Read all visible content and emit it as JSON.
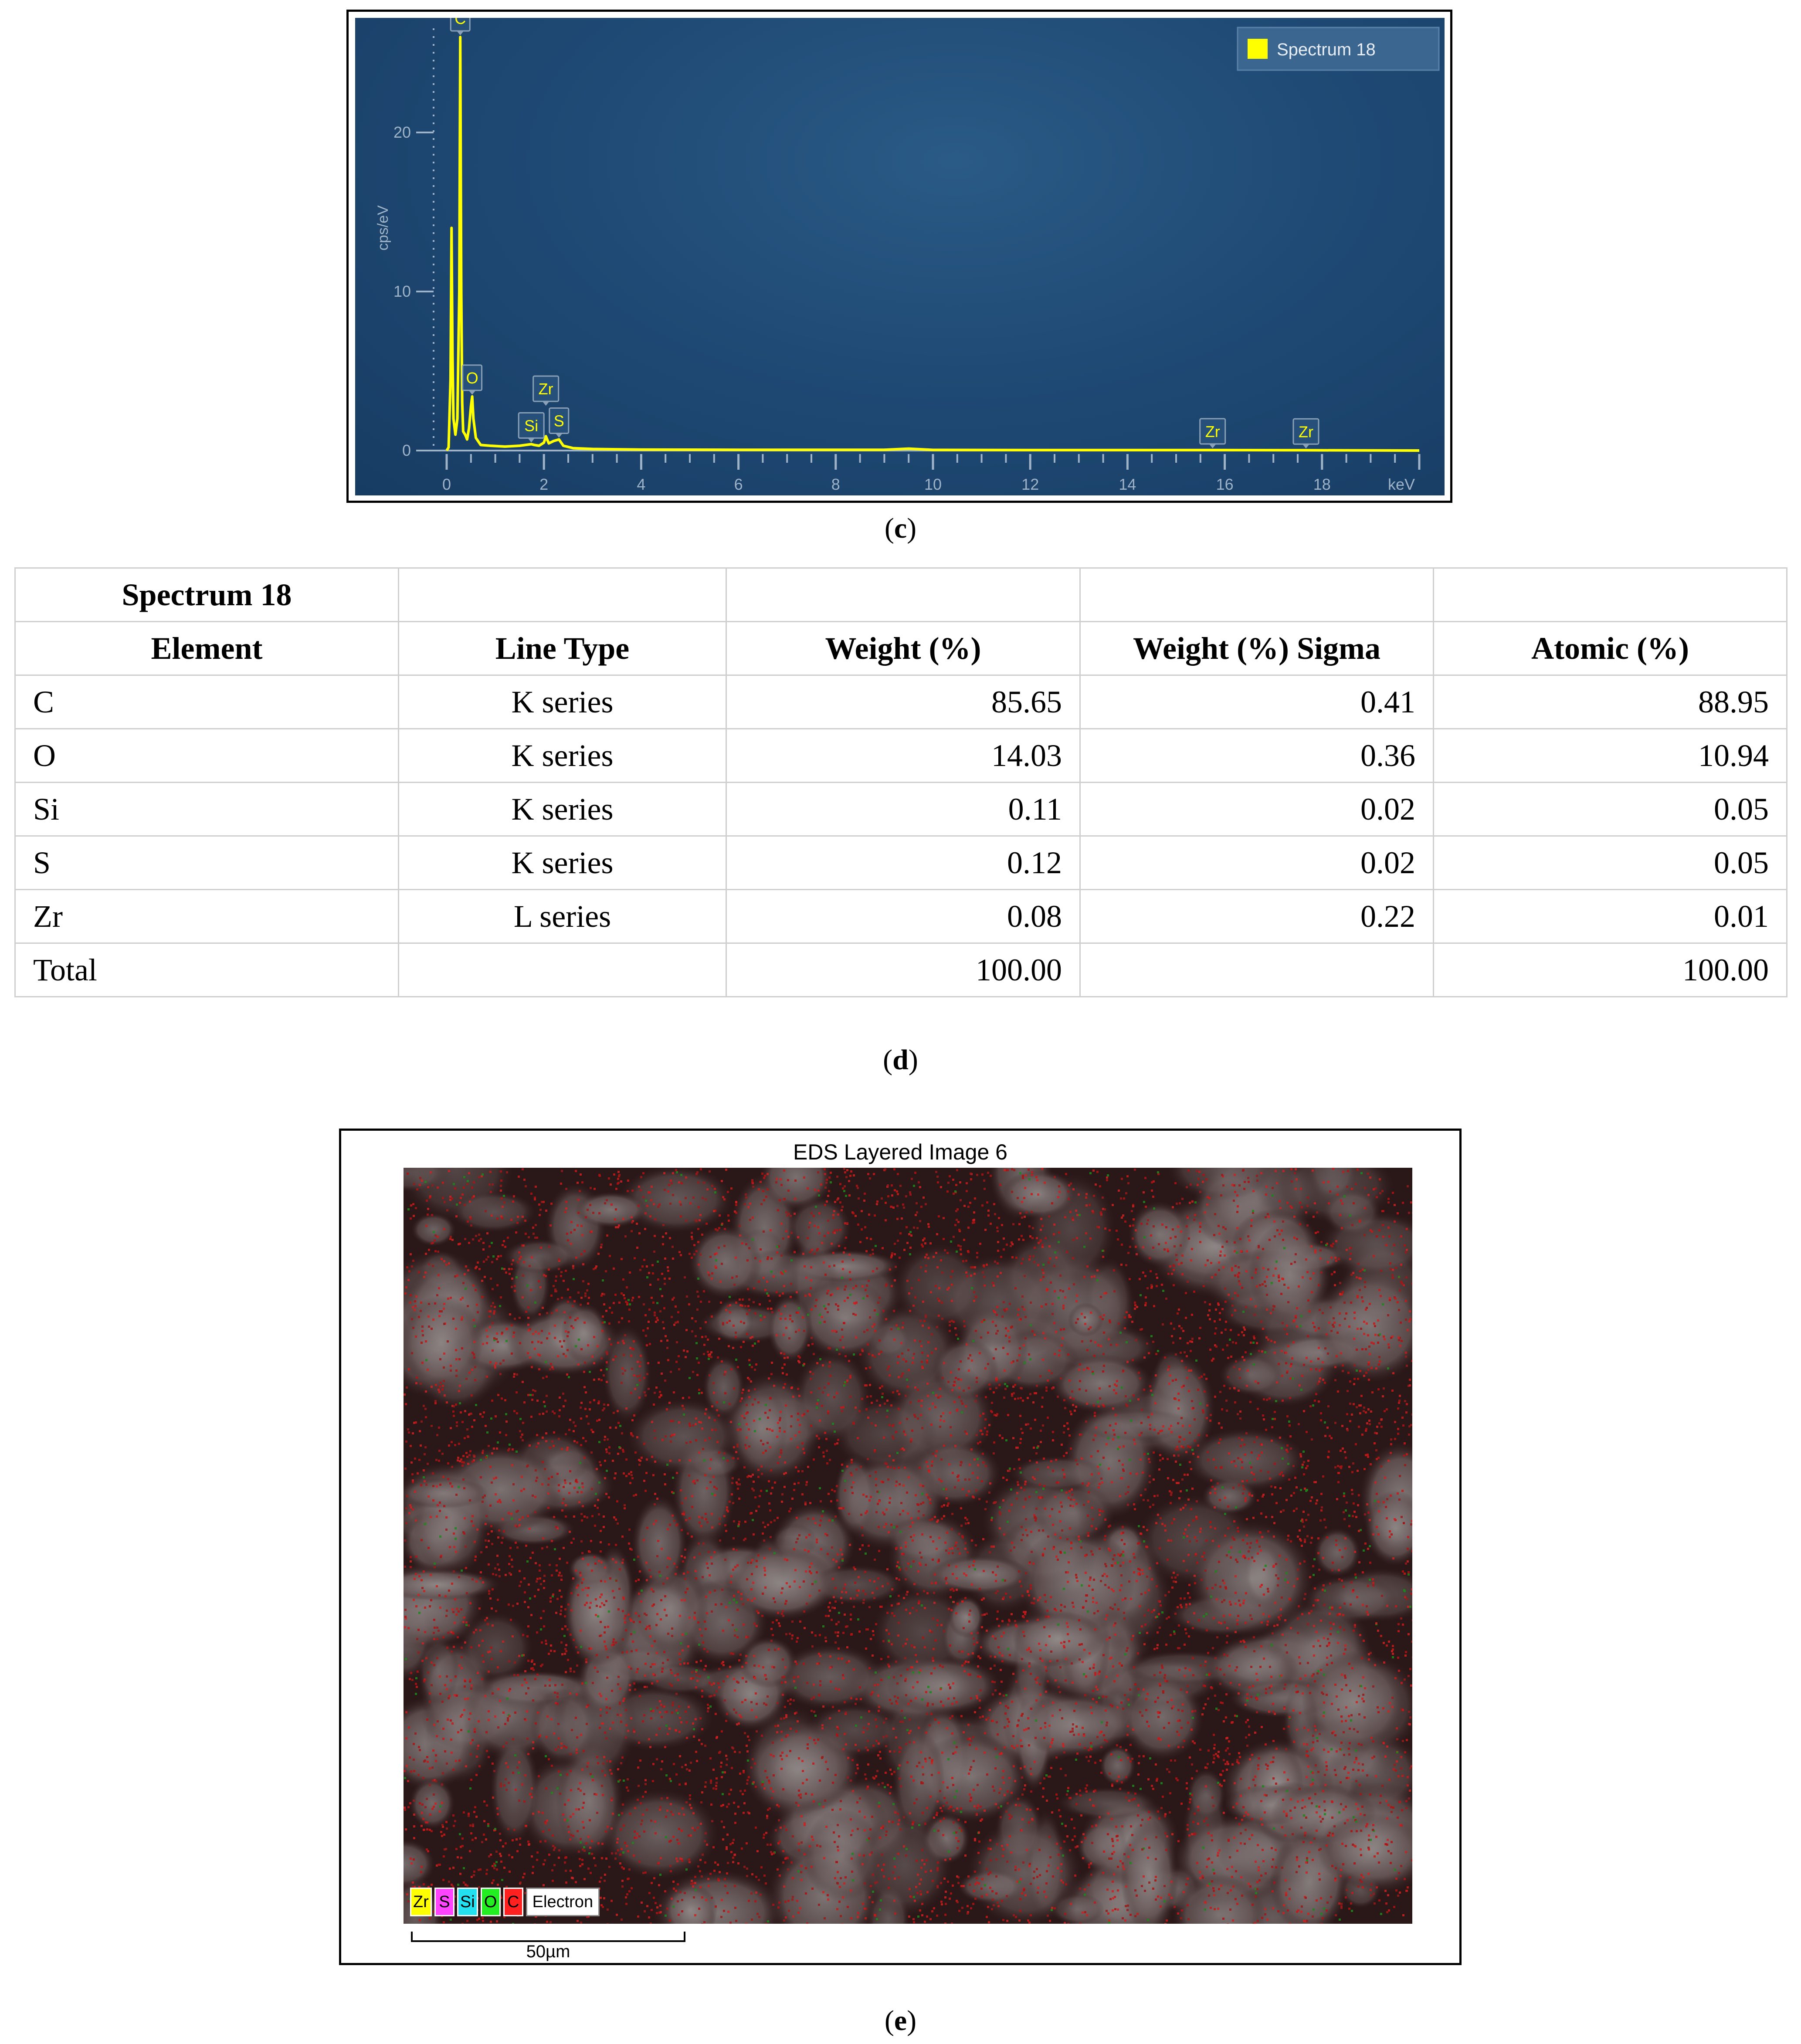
{
  "captions": {
    "c": "c",
    "d": "d",
    "e": "e"
  },
  "chart_data": {
    "type": "line",
    "xlabel": "keV",
    "ylabel": "cps/eV",
    "xlim": [
      0,
      20
    ],
    "ylim": [
      0,
      26
    ],
    "x_ticks": [
      0,
      2,
      4,
      6,
      8,
      10,
      12,
      14,
      16,
      18
    ],
    "y_ticks": [
      0,
      10,
      20
    ],
    "legend": {
      "position": "top-right",
      "entries": [
        "Spectrum 18"
      ]
    },
    "series": [
      {
        "name": "Spectrum 18",
        "color": "#ffff00",
        "x": [
          0.0,
          0.04,
          0.08,
          0.1,
          0.12,
          0.14,
          0.18,
          0.22,
          0.26,
          0.28,
          0.3,
          0.32,
          0.34,
          0.38,
          0.42,
          0.46,
          0.5,
          0.525,
          0.55,
          0.6,
          0.7,
          0.9,
          1.2,
          1.5,
          1.74,
          1.8,
          1.9,
          2.0,
          2.04,
          2.1,
          2.2,
          2.31,
          2.4,
          2.6,
          3.0,
          4.0,
          6.0,
          9.0,
          9.5,
          10.0,
          12.0,
          15.75,
          17.67,
          20.0
        ],
        "y": [
          0.0,
          0.2,
          4.5,
          14.0,
          6.0,
          2.0,
          1.0,
          2.0,
          10.0,
          26.0,
          10.0,
          3.0,
          1.2,
          1.0,
          0.7,
          1.4,
          2.8,
          3.4,
          2.0,
          0.8,
          0.35,
          0.3,
          0.25,
          0.3,
          0.4,
          0.35,
          0.3,
          0.5,
          0.9,
          0.45,
          0.6,
          0.7,
          0.3,
          0.15,
          0.1,
          0.06,
          0.05,
          0.05,
          0.12,
          0.04,
          0.03,
          0.03,
          0.02,
          0.0
        ]
      }
    ],
    "peak_labels": [
      {
        "text": "C",
        "x": 0.28,
        "y": 26.0
      },
      {
        "text": "O",
        "x": 0.525,
        "y": 3.4
      },
      {
        "text": "Si",
        "x": 1.74,
        "y": 0.4
      },
      {
        "text": "Zr",
        "x": 2.04,
        "y": 0.9
      },
      {
        "text": "S",
        "x": 2.31,
        "y": 0.7
      },
      {
        "text": "Zr",
        "x": 15.75,
        "y": 0.03
      },
      {
        "text": "Zr",
        "x": 17.67,
        "y": 0.02
      }
    ]
  },
  "table": {
    "title": "Spectrum 18",
    "headers": [
      "Element",
      "Line Type",
      "Weight (%)",
      "Weight (%) Sigma",
      "Atomic (%)"
    ],
    "rows": [
      [
        "C",
        "K series",
        "85.65",
        "0.41",
        "88.95"
      ],
      [
        "O",
        "K series",
        "14.03",
        "0.36",
        "10.94"
      ],
      [
        "Si",
        "K series",
        "0.11",
        "0.02",
        "0.05"
      ],
      [
        "S",
        "K series",
        "0.12",
        "0.02",
        "0.05"
      ],
      [
        "Zr",
        "L series",
        "0.08",
        "0.22",
        "0.01"
      ],
      [
        "Total",
        "",
        "100.00",
        "",
        "100.00"
      ]
    ]
  },
  "eds_map": {
    "title": "EDS Layered Image 6",
    "legend": [
      {
        "label": "Zr",
        "color": "#ffff00"
      },
      {
        "label": "S",
        "color": "#ff44ff"
      },
      {
        "label": "Si",
        "color": "#22e0f0"
      },
      {
        "label": "O",
        "color": "#22ee22"
      },
      {
        "label": "C",
        "color": "#ff2020"
      },
      {
        "label": "Electron",
        "color": "#ffffff"
      }
    ],
    "scale_bar_label": "50µm"
  }
}
